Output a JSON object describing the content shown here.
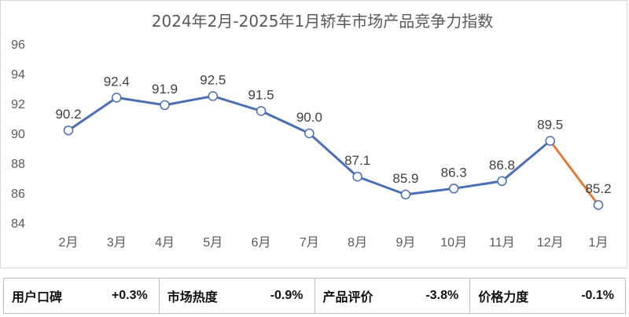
{
  "chart_data": {
    "type": "line",
    "title": "2024年2月-2025年1月轿车市场产品竞争力指数",
    "categories": [
      "2月",
      "3月",
      "4月",
      "5月",
      "6月",
      "7月",
      "8月",
      "9月",
      "10月",
      "11月",
      "12月",
      "1月"
    ],
    "series": [
      {
        "values": [
          90.2,
          92.4,
          91.9,
          92.5,
          91.5,
          90.0,
          87.1,
          85.9,
          86.3,
          86.8,
          89.5,
          85.2
        ],
        "color": "#4a6fb5",
        "highlight_last_segment_color": "#e07b39"
      }
    ],
    "data_labels": [
      "90.2",
      "92.4",
      "91.9",
      "92.5",
      "91.5",
      "90.0",
      "87.1",
      "85.9",
      "86.3",
      "86.8",
      "89.5",
      "85.2"
    ],
    "ylim": [
      84,
      96
    ],
    "yticks": [
      "84",
      "86",
      "88",
      "90",
      "92",
      "94",
      "96"
    ],
    "grid": false,
    "drop_lines": true
  },
  "metrics": [
    {
      "label": "用户口碑",
      "value": "+0.3%"
    },
    {
      "label": "市场热度",
      "value": "-0.9%"
    },
    {
      "label": "产品评价",
      "value": "-3.8%"
    },
    {
      "label": "价格力度",
      "value": "-0.1%"
    }
  ]
}
